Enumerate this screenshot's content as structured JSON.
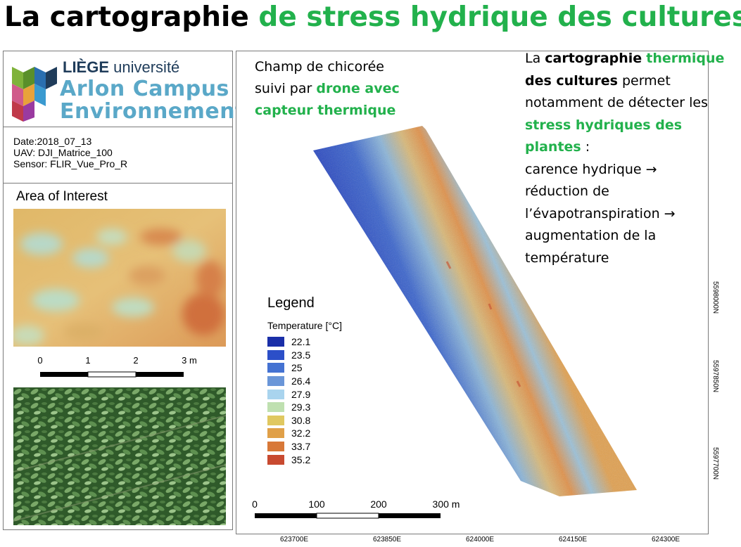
{
  "title": {
    "part1": "La cartographie",
    "part2": "de stress hydrique des cultures"
  },
  "logo": {
    "line1_bold": "LIÈGE",
    "line1_rest": "université",
    "line2": "Arlon Campus",
    "line3": "Environnement"
  },
  "meta": {
    "date": "Date:2018_07_13",
    "uav": "UAV: DJI_Matrice_100",
    "sensor": "Sensor: FLIR_Vue_Pro_R"
  },
  "aoi": {
    "title": "Area of Interest",
    "scale_labels": [
      "0",
      "1",
      "2",
      "3 m"
    ]
  },
  "caption": {
    "line1": "Champ de chicorée",
    "line2a": "suivi par",
    "line2b": "drone avec",
    "line3": "capteur thermique"
  },
  "legend": {
    "title": "Legend",
    "subtitle": "Temperature [°C]",
    "items": [
      {
        "label": "22.1",
        "color": "#1a2fa8"
      },
      {
        "label": "23.5",
        "color": "#2c4fc8"
      },
      {
        "label": "25",
        "color": "#4472d2"
      },
      {
        "label": "26.4",
        "color": "#6a96d8"
      },
      {
        "label": "27.9",
        "color": "#a9d4ee"
      },
      {
        "label": "29.3",
        "color": "#bfe0b0"
      },
      {
        "label": "30.8",
        "color": "#e0c860"
      },
      {
        "label": "32.2",
        "color": "#e0a048"
      },
      {
        "label": "33.7",
        "color": "#d87838"
      },
      {
        "label": "35.2",
        "color": "#c84a30"
      }
    ]
  },
  "map_scale": {
    "labels": [
      "0",
      "100",
      "200",
      "300 m"
    ]
  },
  "coords": {
    "x": [
      "623700E",
      "623850E",
      "624000E",
      "624150E",
      "624300E"
    ],
    "y": [
      "5598000N",
      "5597850N",
      "5597700N"
    ]
  },
  "right_text": {
    "l1a": "La",
    "l1b": "cartographie",
    "l1c": "thermique",
    "l2a": "des cultures",
    "l2b": "permet",
    "l3": "notamment de détecter les",
    "l4": "stress hydriques des",
    "l5a": "plantes",
    "l5b": " :",
    "l6": "carence hydrique →",
    "l7": "réduction de",
    "l8": "l’évapotranspiration →",
    "l9": "augmentation de la",
    "l10": "température"
  }
}
